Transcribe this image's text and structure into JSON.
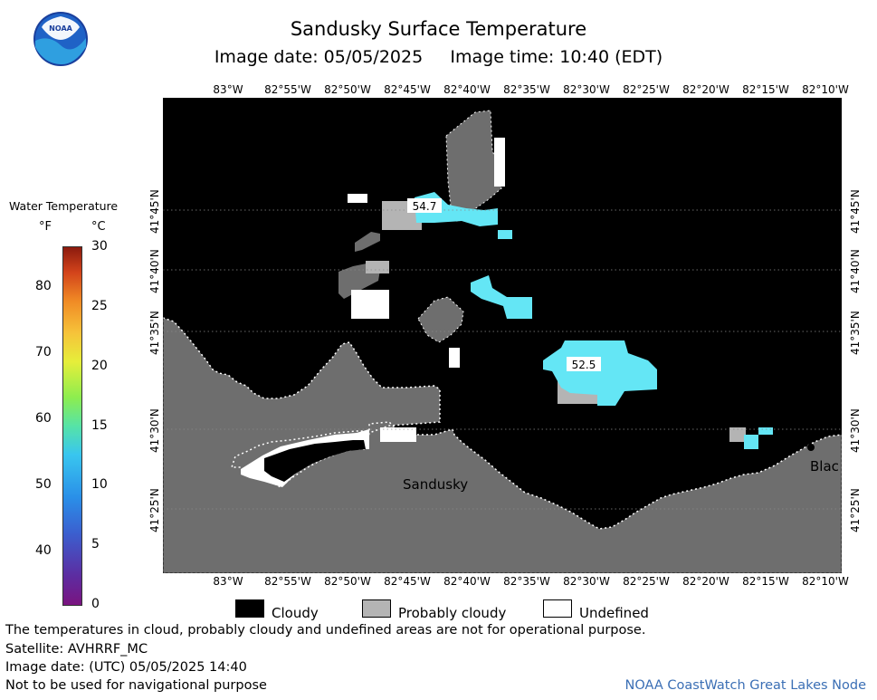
{
  "header": {
    "title": "Sandusky Surface Temperature",
    "subtitle_date": "Image date: 05/05/2025",
    "subtitle_time": "Image time: 10:40 (EDT)",
    "logo_text": "NOAA"
  },
  "map": {
    "lon_labels": [
      "83°W",
      "82°55'W",
      "82°50'W",
      "82°45'W",
      "82°40'W",
      "82°35'W",
      "82°30'W",
      "82°25'W",
      "82°20'W",
      "82°15'W",
      "82°10'W"
    ],
    "lat_labels": [
      "41°45'N",
      "41°40'N",
      "41°35'N",
      "41°30'N",
      "41°25'N"
    ],
    "place_labels": [
      "Sandusky",
      "Blac"
    ],
    "temp_labels": [
      "54.7",
      "52.5"
    ],
    "colors": {
      "land": "#6e6e6e",
      "cloud": "#000000",
      "probably_cloudy": "#b4b4b4",
      "undefined": "#ffffff",
      "water_cyan": "#64e6f5"
    }
  },
  "legend": {
    "title": "Water Temperature",
    "unit_f": "°F",
    "unit_c": "°C",
    "f_ticks": [
      "80",
      "70",
      "60",
      "50",
      "40"
    ],
    "c_ticks": [
      "30",
      "25",
      "20",
      "15",
      "10",
      "5",
      "0"
    ],
    "c_range": [
      0,
      30
    ],
    "f_tick_values": [
      80,
      70,
      60,
      50,
      40
    ],
    "key": {
      "cloudy": "Cloudy",
      "probably_cloudy": "Probably cloudy",
      "undefined": "Undefined"
    }
  },
  "footer": {
    "note": "The temperatures in cloud, probably cloudy and undefined areas are not for operational purpose.",
    "satellite": "Satellite: AVHRRF_MC",
    "utc_date": "Image date: (UTC) 05/05/2025  14:40",
    "nav": "Not to be used for navigational purpose",
    "credit": "NOAA CoastWatch Great Lakes Node"
  }
}
